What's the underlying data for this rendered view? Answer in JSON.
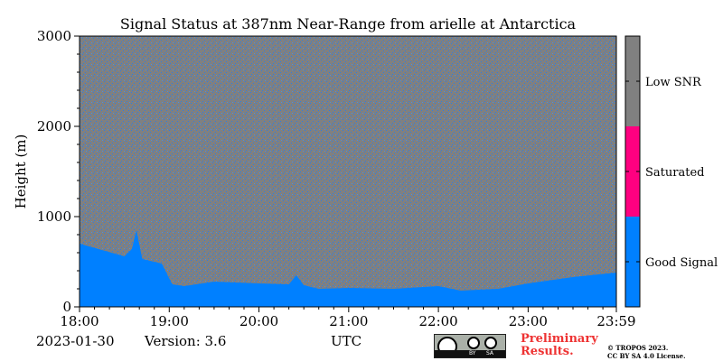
{
  "chart_data": {
    "type": "heatmap",
    "title": "Signal Status at 387nm Near-Range from arielle at Antarctica",
    "ylabel": "Height (m)",
    "xlabel": "UTC",
    "ylim": [
      0,
      3000
    ],
    "yticks": [
      "0",
      "1000",
      "2000",
      "3000"
    ],
    "xlim": [
      "18:00",
      "23:59"
    ],
    "xticks": [
      "18:00",
      "19:00",
      "20:00",
      "21:00",
      "22:00",
      "23:00",
      "23:59"
    ],
    "classes": [
      {
        "name": "Good Signal",
        "color": "#0080ff"
      },
      {
        "name": "Saturated",
        "color": "#ff0080"
      },
      {
        "name": "Low SNR",
        "color": "#808080"
      }
    ],
    "good_signal_top_m": {
      "times": [
        "18:00",
        "18:30",
        "18:35",
        "18:38",
        "18:42",
        "18:55",
        "19:02",
        "19:10",
        "19:30",
        "20:00",
        "20:20",
        "20:25",
        "20:30",
        "20:40",
        "21:00",
        "21:30",
        "22:00",
        "22:15",
        "22:40",
        "23:00",
        "23:30",
        "23:59"
      ],
      "values": [
        700,
        560,
        640,
        850,
        530,
        480,
        250,
        230,
        280,
        260,
        250,
        350,
        240,
        200,
        210,
        200,
        230,
        180,
        200,
        260,
        330,
        380
      ]
    }
  },
  "footer": {
    "date": "2023-01-30",
    "version": "Version: 3.6",
    "axis_unit": "UTC",
    "preliminary": "Preliminary",
    "results": "Results.",
    "copyright": "© TROPOS 2023.",
    "license": "CC BY SA 4.0 License.",
    "badge_by": "BY",
    "badge_sa": "SA"
  }
}
